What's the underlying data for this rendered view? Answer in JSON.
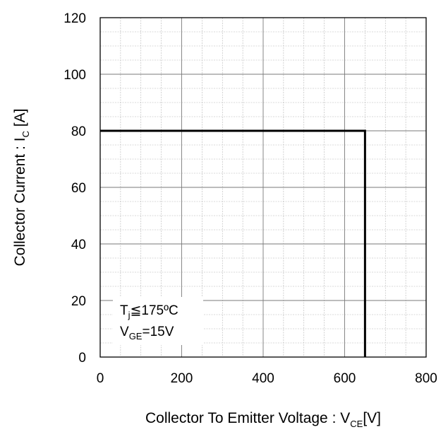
{
  "chart_data": {
    "type": "line",
    "title": "",
    "x_axis": {
      "label_main": "Collector To Emitter Voltage : V",
      "label_sub": "CE",
      "label_unit": "[V]",
      "range": [
        0,
        800
      ],
      "ticks": [
        0,
        200,
        400,
        600,
        800
      ],
      "minor_step": 50
    },
    "y_axis": {
      "label_main": "Collector Current : I",
      "label_sub": "C",
      "label_unit": " [A]",
      "range": [
        0,
        120
      ],
      "ticks": [
        0,
        20,
        40,
        60,
        80,
        100,
        120
      ],
      "minor_step": 5
    },
    "grid": true,
    "series": [
      {
        "color": "#000000",
        "points": [
          {
            "x": 0,
            "y": 80
          },
          {
            "x": 650,
            "y": 80
          },
          {
            "x": 650,
            "y": 0
          }
        ]
      }
    ],
    "annotations": [
      {
        "main": "T",
        "sub": "j",
        "rest": "≦175ºC"
      },
      {
        "main": "V",
        "sub": "GE",
        "rest": "=15V"
      }
    ]
  }
}
